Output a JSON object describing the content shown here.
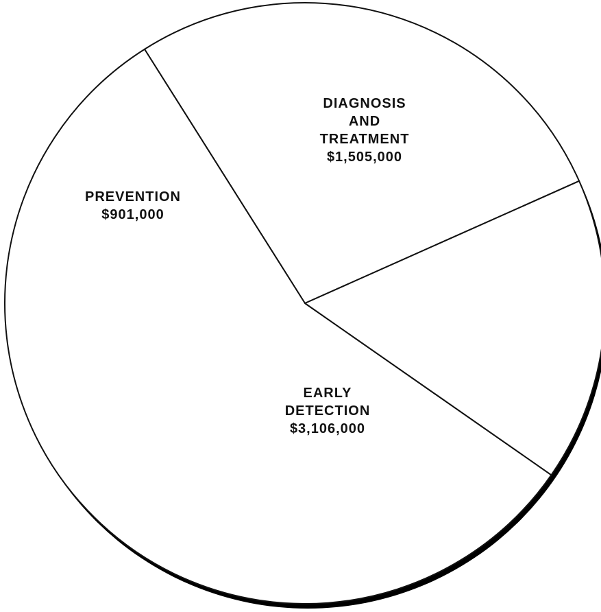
{
  "chart_data": {
    "type": "pie",
    "title": "",
    "slices": [
      {
        "label": [
          "DIAGNOSIS",
          "AND",
          "TREATMENT"
        ],
        "value_label": "$1,505,000",
        "value": 1505000
      },
      {
        "label": [
          "EARLY",
          "DETECTION"
        ],
        "value_label": "$3,106,000",
        "value": 3106000
      },
      {
        "label": [
          "PREVENTION"
        ],
        "value_label": "$901,000",
        "value": 901000
      }
    ],
    "colors": {
      "fill": "#ffffff",
      "stroke": "#111111",
      "shadow": "#000000"
    }
  }
}
